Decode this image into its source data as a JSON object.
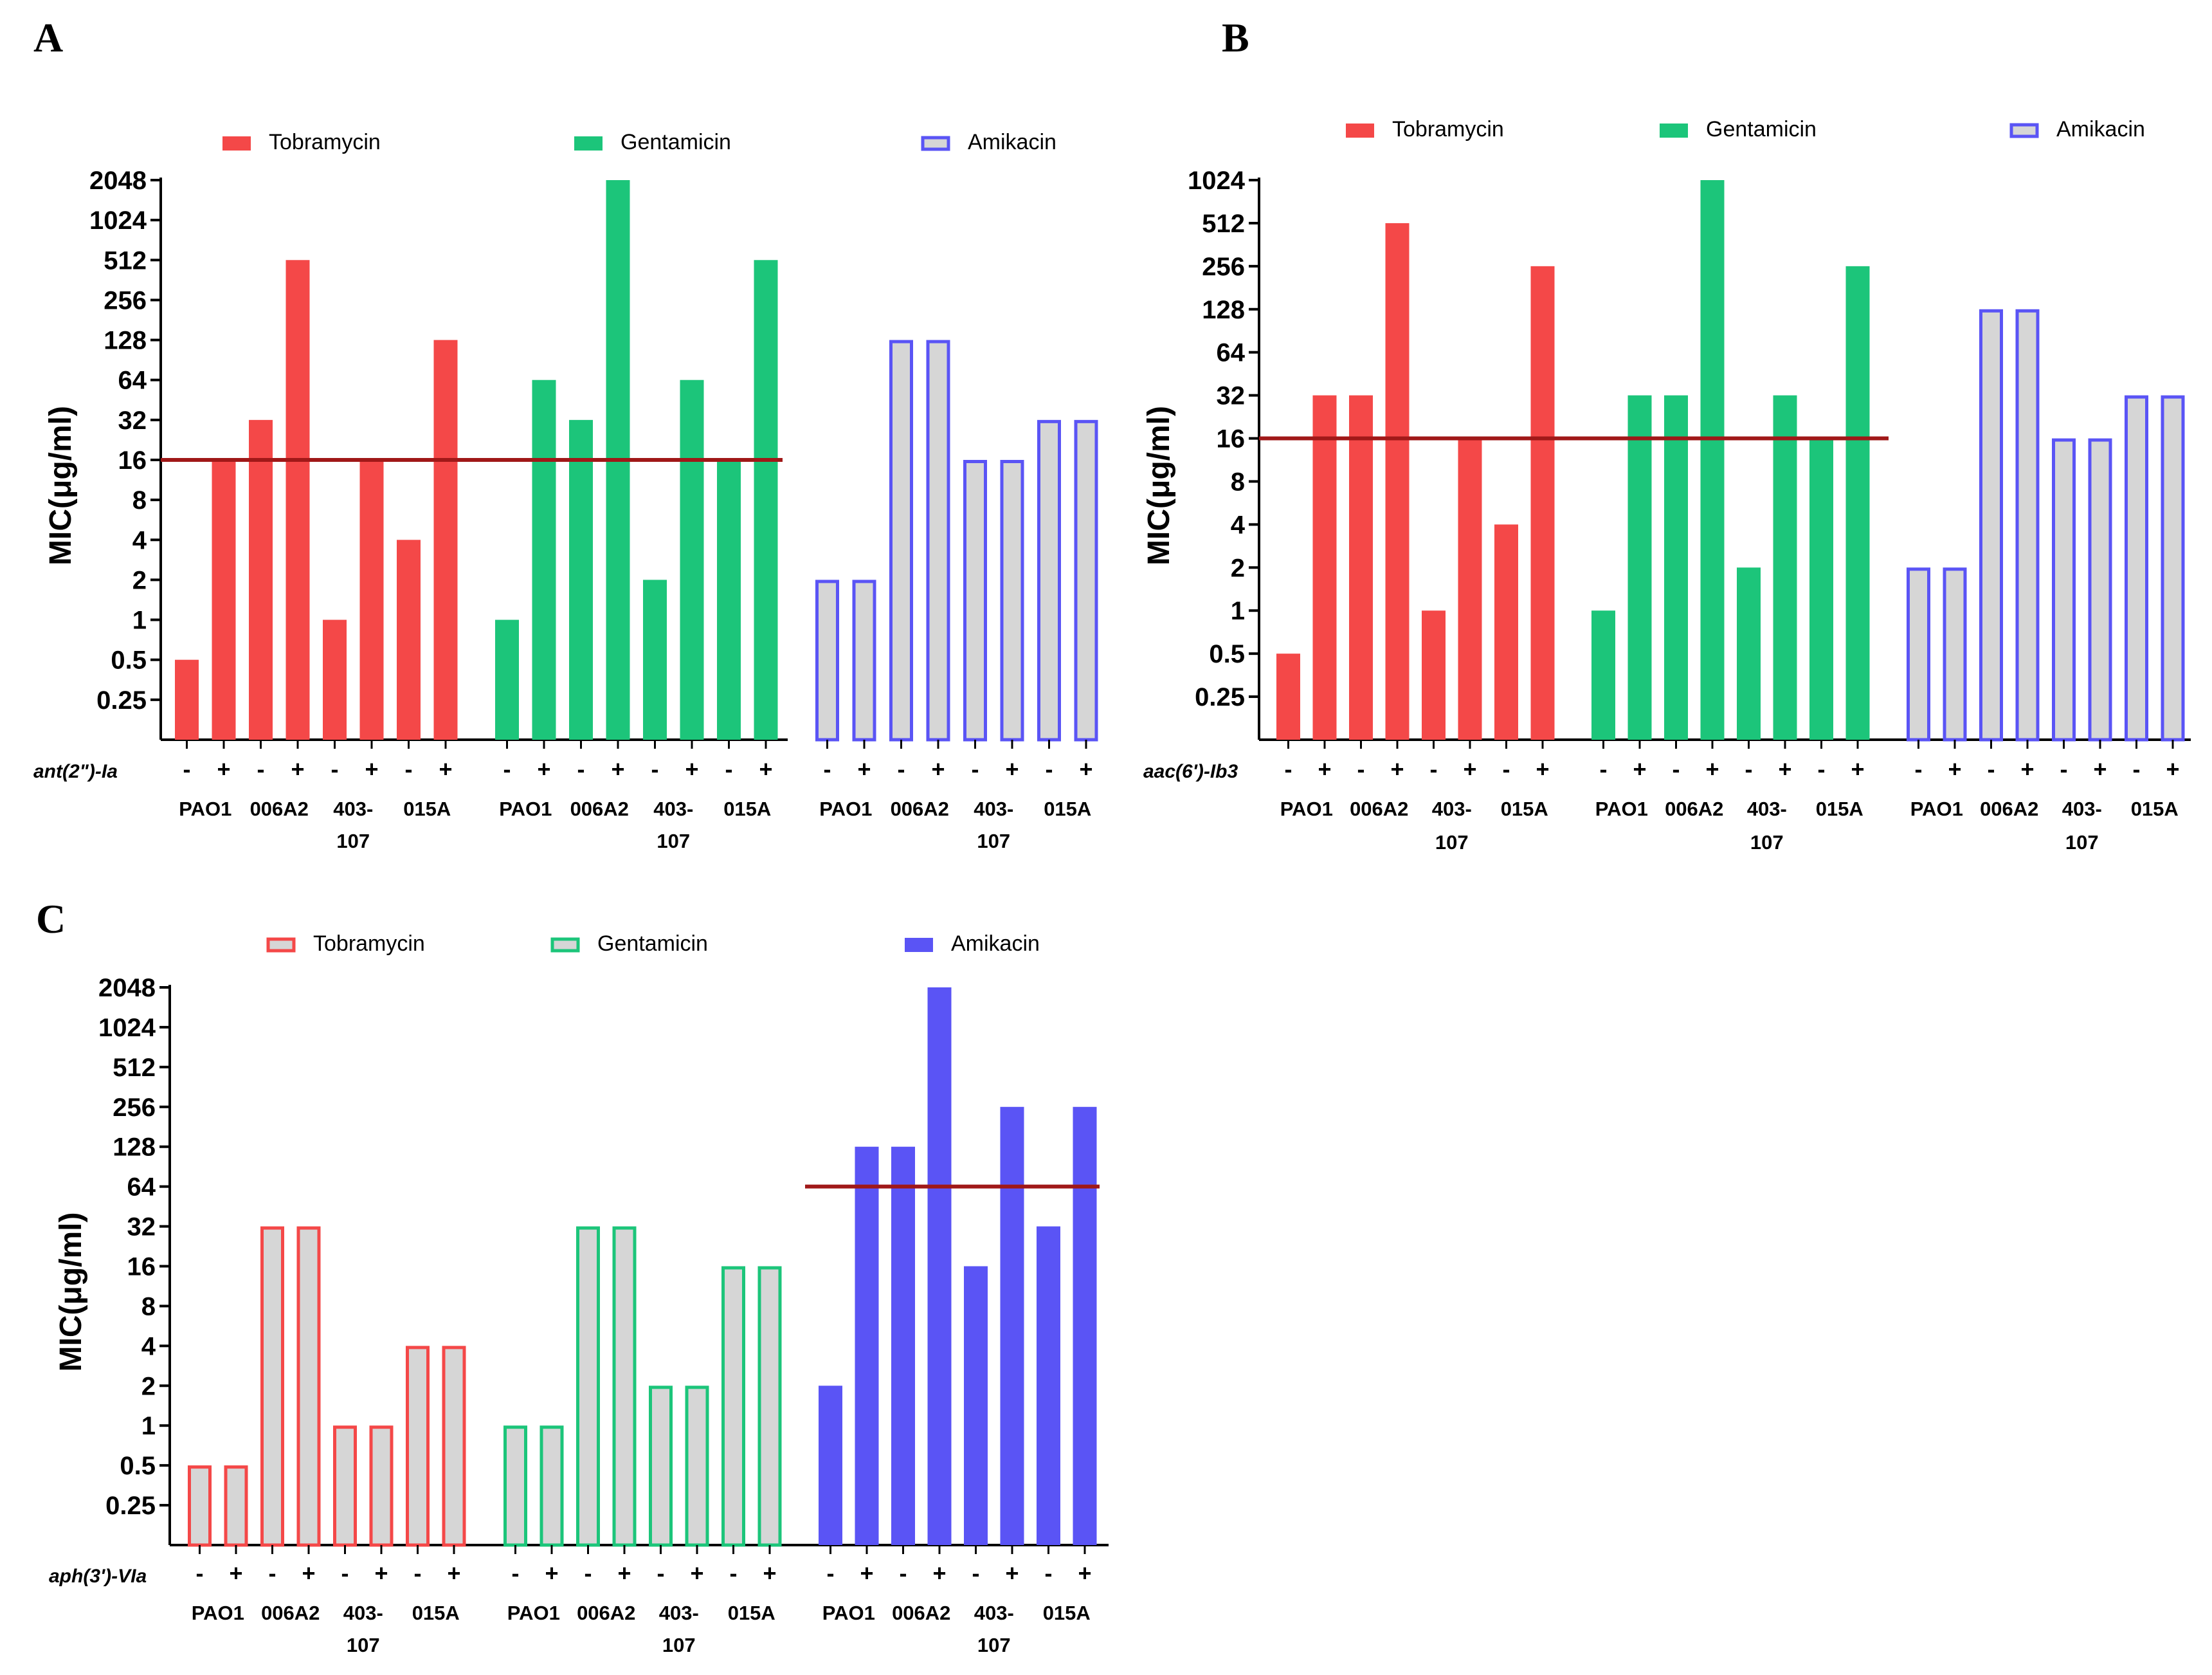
{
  "colors": {
    "tobramycin": "#f44848",
    "gentamicin": "#1cc57a",
    "amikacin": "#5a54f5",
    "outline_fill": "#d6d6d6",
    "breakpoint": "#a01818"
  },
  "chart_data": [
    {
      "type": "bar",
      "panel": "A",
      "ylabel": "MIC(μg/ml)",
      "yscale": "log2",
      "yticks": [
        "0.25",
        "0.5",
        "1",
        "2",
        "4",
        "8",
        "16",
        "32",
        "64",
        "128",
        "256",
        "512",
        "1024",
        "2048"
      ],
      "ylim": [
        0.125,
        2048
      ],
      "gene": "ant(2\")-Ia",
      "breakpoint": 16,
      "breakpoint_span": [
        "Tobramycin",
        "Gentamicin"
      ],
      "strains": [
        "PAO1",
        "006A2",
        "403-\n107",
        "015A"
      ],
      "pm": [
        "-",
        "+"
      ],
      "series": [
        {
          "name": "Tobramycin",
          "style": "filled",
          "values": [
            0.5,
            16,
            32,
            512,
            1,
            16,
            4,
            128
          ]
        },
        {
          "name": "Gentamicin",
          "style": "filled",
          "values": [
            1,
            64,
            32,
            2048,
            2,
            64,
            16,
            512
          ]
        },
        {
          "name": "Amikacin",
          "style": "outline",
          "values": [
            2,
            2,
            128,
            128,
            16,
            16,
            32,
            32
          ]
        }
      ]
    },
    {
      "type": "bar",
      "panel": "B",
      "ylabel": "MIC(μg/ml)",
      "yscale": "log2",
      "yticks": [
        "0.25",
        "0.5",
        "1",
        "2",
        "4",
        "8",
        "16",
        "32",
        "64",
        "128",
        "256",
        "512",
        "1024"
      ],
      "ylim": [
        0.125,
        1024
      ],
      "gene": "aac(6')-Ib3",
      "breakpoint": 16,
      "breakpoint_span": [
        "Tobramycin",
        "Gentamicin"
      ],
      "strains": [
        "PAO1",
        "006A2",
        "403-\n107",
        "015A"
      ],
      "pm": [
        "-",
        "+"
      ],
      "series": [
        {
          "name": "Tobramycin",
          "style": "filled",
          "values": [
            0.5,
            32,
            32,
            512,
            1,
            16,
            4,
            256
          ]
        },
        {
          "name": "Gentamicin",
          "style": "filled",
          "values": [
            1,
            32,
            32,
            1024,
            2,
            32,
            16,
            256
          ]
        },
        {
          "name": "Amikacin",
          "style": "outline",
          "values": [
            2,
            2,
            128,
            128,
            16,
            16,
            32,
            32
          ]
        }
      ]
    },
    {
      "type": "bar",
      "panel": "C",
      "ylabel": "MIC(μg/ml)",
      "yscale": "log2",
      "yticks": [
        "0.25",
        "0.5",
        "1",
        "2",
        "4",
        "8",
        "16",
        "32",
        "64",
        "128",
        "256",
        "512",
        "1024",
        "2048"
      ],
      "ylim": [
        0.125,
        2048
      ],
      "gene": "aph(3')-VIa",
      "breakpoint": 64,
      "breakpoint_span": [
        "Amikacin"
      ],
      "strains": [
        "PAO1",
        "006A2",
        "403-\n107",
        "015A"
      ],
      "pm": [
        "-",
        "+"
      ],
      "series": [
        {
          "name": "Tobramycin",
          "style": "outline",
          "values": [
            0.5,
            0.5,
            32,
            32,
            1,
            1,
            4,
            4
          ]
        },
        {
          "name": "Gentamicin",
          "style": "outline",
          "values": [
            1,
            1,
            32,
            32,
            2,
            2,
            16,
            16
          ]
        },
        {
          "name": "Amikacin",
          "style": "filled",
          "values": [
            2,
            128,
            128,
            2048,
            16,
            256,
            32,
            256
          ]
        }
      ]
    }
  ]
}
